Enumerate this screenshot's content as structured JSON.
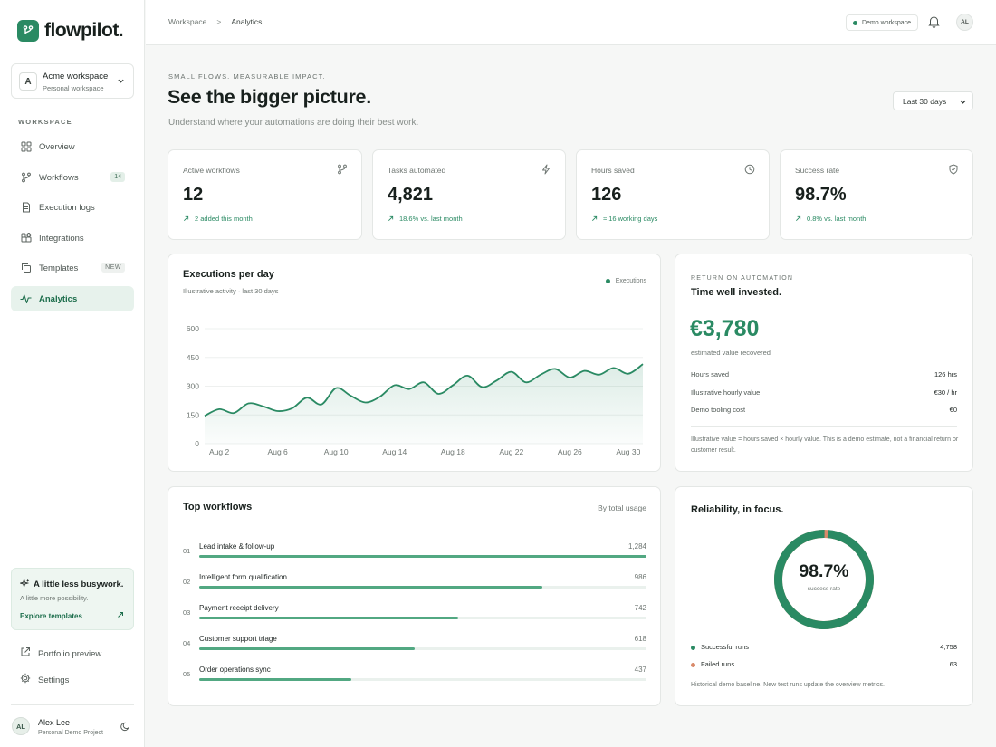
{
  "app": {
    "name": "flowpilot."
  },
  "workspace": {
    "initial": "A",
    "name": "Acme workspace",
    "sub": "Personal workspace"
  },
  "sidebar": {
    "section_label": "WORKSPACE",
    "items": [
      {
        "label": "Overview",
        "icon": "grid-icon",
        "active": false
      },
      {
        "label": "Workflows",
        "icon": "branch-icon",
        "badge": "14",
        "active": false
      },
      {
        "label": "Execution logs",
        "icon": "document-icon",
        "active": false
      },
      {
        "label": "Integrations",
        "icon": "puzzle-icon",
        "active": false
      },
      {
        "label": "Templates",
        "icon": "copy-icon",
        "badge": "NEW",
        "active": false
      },
      {
        "label": "Analytics",
        "icon": "pulse-icon",
        "active": true
      }
    ],
    "promo": {
      "title": "A little less busywork.",
      "sub": "A little more possibility.",
      "link": "Explore templates"
    },
    "footer_links": [
      {
        "label": "Portfolio preview",
        "icon": "external-link-icon"
      },
      {
        "label": "Settings",
        "icon": "gear-icon"
      }
    ],
    "user": {
      "initials": "AL",
      "name": "Alex Lee",
      "sub": "Personal Demo Project"
    }
  },
  "topbar": {
    "breadcrumb": [
      "Workspace",
      "Analytics"
    ],
    "separator": ">",
    "demo_label": "Demo workspace",
    "avatar_initials": "AL"
  },
  "header": {
    "eyebrow": "SMALL FLOWS. MEASURABLE IMPACT.",
    "title": "See the bigger picture.",
    "subtitle": "Understand where your automations are doing their best work.",
    "range": "Last 30 days"
  },
  "stats": [
    {
      "label": "Active workflows",
      "value": "12",
      "trend": "2 added this month",
      "icon": "branch-icon"
    },
    {
      "label": "Tasks automated",
      "value": "4,821",
      "trend": "18.6% vs. last month",
      "icon": "bolt-icon"
    },
    {
      "label": "Hours saved",
      "value": "126",
      "trend": "≈ 16 working days",
      "icon": "clock-icon"
    },
    {
      "label": "Success rate",
      "value": "98.7%",
      "trend": "0.8% vs. last month",
      "icon": "shield-icon"
    }
  ],
  "executions": {
    "title": "Executions per day",
    "subtitle": "Illustrative activity · last 30 days",
    "legend": "Executions",
    "color": "#2a8a63"
  },
  "chart_data": {
    "type": "area",
    "x": [
      "Aug 1",
      "Aug 2",
      "Aug 3",
      "Aug 4",
      "Aug 5",
      "Aug 6",
      "Aug 7",
      "Aug 8",
      "Aug 9",
      "Aug 10",
      "Aug 11",
      "Aug 12",
      "Aug 13",
      "Aug 14",
      "Aug 15",
      "Aug 16",
      "Aug 17",
      "Aug 18",
      "Aug 19",
      "Aug 20",
      "Aug 21",
      "Aug 22",
      "Aug 23",
      "Aug 24",
      "Aug 25",
      "Aug 26",
      "Aug 27",
      "Aug 28",
      "Aug 29",
      "Aug 30",
      "Aug 31"
    ],
    "series": [
      {
        "name": "Executions",
        "values": [
          145,
          180,
          160,
          210,
          195,
          170,
          185,
          240,
          205,
          290,
          250,
          215,
          245,
          305,
          285,
          320,
          260,
          305,
          355,
          295,
          330,
          375,
          320,
          360,
          390,
          345,
          380,
          360,
          395,
          365,
          415
        ]
      }
    ],
    "x_tick_labels": [
      "Aug 2",
      "Aug 6",
      "Aug 10",
      "Aug 14",
      "Aug 18",
      "Aug 22",
      "Aug 26",
      "Aug 30"
    ],
    "y_ticks": [
      0,
      150,
      300,
      450,
      600
    ],
    "ylim": [
      0,
      600
    ],
    "grid": true,
    "legend_position": "top-right"
  },
  "roi": {
    "eyebrow": "RETURN ON AUTOMATION",
    "title": "Time well invested.",
    "value": "€3,780",
    "caption": "estimated value recovered",
    "rows": [
      {
        "label": "Hours saved",
        "value": "126 hrs"
      },
      {
        "label": "Illustrative hourly value",
        "value": "€30 / hr"
      },
      {
        "label": "Demo tooling cost",
        "value": "€0"
      }
    ],
    "note": "Illustrative value = hours saved × hourly value. This is a demo estimate, not a financial return or customer result."
  },
  "top_workflows": {
    "title": "Top workflows",
    "header_right": "By total usage",
    "items": [
      {
        "num": "01",
        "name": "Lead intake & follow-up",
        "count": "1,284",
        "share": 1.0
      },
      {
        "num": "02",
        "name": "Intelligent form qualification",
        "count": "986",
        "share": 0.768
      },
      {
        "num": "03",
        "name": "Payment receipt delivery",
        "count": "742",
        "share": 0.578
      },
      {
        "num": "04",
        "name": "Customer support triage",
        "count": "618",
        "share": 0.481
      },
      {
        "num": "05",
        "name": "Order operations sync",
        "count": "437",
        "share": 0.34
      }
    ]
  },
  "reliability": {
    "title": "Reliability, in focus.",
    "value": "98.7%",
    "label": "success rate",
    "success_fraction": 0.987,
    "rows": [
      {
        "label": "Successful runs",
        "value": "4,758",
        "color": "#2a8a63"
      },
      {
        "label": "Failed runs",
        "value": "63",
        "color": "#d98a6a"
      }
    ],
    "note": "Historical demo baseline. New test runs update the overview metrics."
  }
}
